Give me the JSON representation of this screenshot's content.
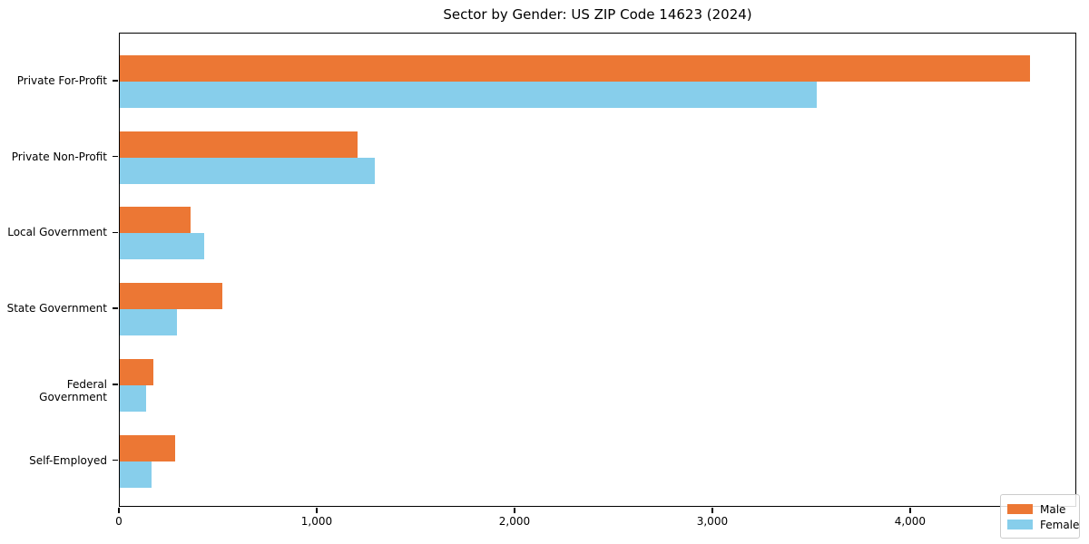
{
  "title": "Sector by Gender: US ZIP Code 14623 (2024)",
  "colors": {
    "male": "#EC7734",
    "female": "#87CEEB",
    "axis": "#000000",
    "legend_border": "#CCCCCC",
    "background": "#FFFFFF"
  },
  "legend": {
    "position": "lower right",
    "items": [
      {
        "label": "Male",
        "color": "#EC7734"
      },
      {
        "label": "Female",
        "color": "#87CEEB"
      }
    ]
  },
  "chart_data": {
    "type": "bar",
    "orientation": "horizontal",
    "title": "Sector by Gender: US ZIP Code 14623 (2024)",
    "categories": [
      "Private For-Profit",
      "Private Non-Profit",
      "Local Government",
      "State Government",
      "Federal Government",
      "Self-Employed"
    ],
    "series": [
      {
        "name": "Male",
        "color": "#EC7734",
        "values": [
          4600,
          1200,
          360,
          520,
          170,
          280
        ]
      },
      {
        "name": "Female",
        "color": "#87CEEB",
        "values": [
          3525,
          1290,
          425,
          290,
          135,
          160
        ]
      }
    ],
    "xlabel": "",
    "ylabel": "",
    "xlim": [
      0,
      4840
    ],
    "x_ticks": [
      0,
      1000,
      2000,
      3000,
      4000
    ],
    "x_tick_labels": [
      "0",
      "1,000",
      "2,000",
      "3,000",
      "4,000"
    ],
    "grid": false,
    "legend_position": "lower right"
  }
}
